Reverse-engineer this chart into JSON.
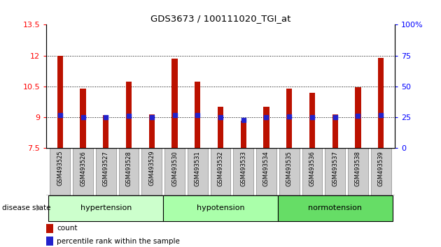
{
  "title": "GDS3673 / 100111020_TGI_at",
  "samples": [
    "GSM493525",
    "GSM493526",
    "GSM493527",
    "GSM493528",
    "GSM493529",
    "GSM493530",
    "GSM493531",
    "GSM493532",
    "GSM493533",
    "GSM493534",
    "GSM493535",
    "GSM493536",
    "GSM493537",
    "GSM493538",
    "GSM493539"
  ],
  "bar_heights": [
    12.0,
    10.4,
    9.1,
    10.75,
    9.15,
    11.85,
    10.72,
    9.5,
    8.85,
    9.5,
    10.4,
    10.2,
    9.15,
    10.45,
    11.9
  ],
  "blue_dots": [
    9.12,
    9.0,
    9.0,
    9.08,
    9.0,
    9.12,
    9.1,
    9.0,
    8.88,
    9.0,
    9.04,
    9.0,
    9.0,
    9.08,
    9.12
  ],
  "bar_color": "#bb1100",
  "dot_color": "#2222cc",
  "ylim_left": [
    7.5,
    13.5
  ],
  "ylim_right": [
    0,
    100
  ],
  "yticks_left": [
    7.5,
    9.0,
    10.5,
    12.0,
    13.5
  ],
  "yticks_right": [
    0,
    25,
    50,
    75,
    100
  ],
  "yticklabels_left": [
    "7.5",
    "9",
    "10.5",
    "12",
    "13.5"
  ],
  "yticklabels_right": [
    "0",
    "25",
    "50",
    "75",
    "100%"
  ],
  "gridlines": [
    9.0,
    10.5,
    12.0
  ],
  "groups": [
    {
      "label": "hypertension",
      "start": 0,
      "end": 4,
      "color": "#ccffcc"
    },
    {
      "label": "hypotension",
      "start": 5,
      "end": 9,
      "color": "#aaffaa"
    },
    {
      "label": "normotension",
      "start": 10,
      "end": 14,
      "color": "#66dd66"
    }
  ],
  "group_label": "disease state",
  "legend_count_color": "#bb1100",
  "legend_dot_color": "#2222cc",
  "background_color": "#ffffff",
  "bar_width": 0.25
}
